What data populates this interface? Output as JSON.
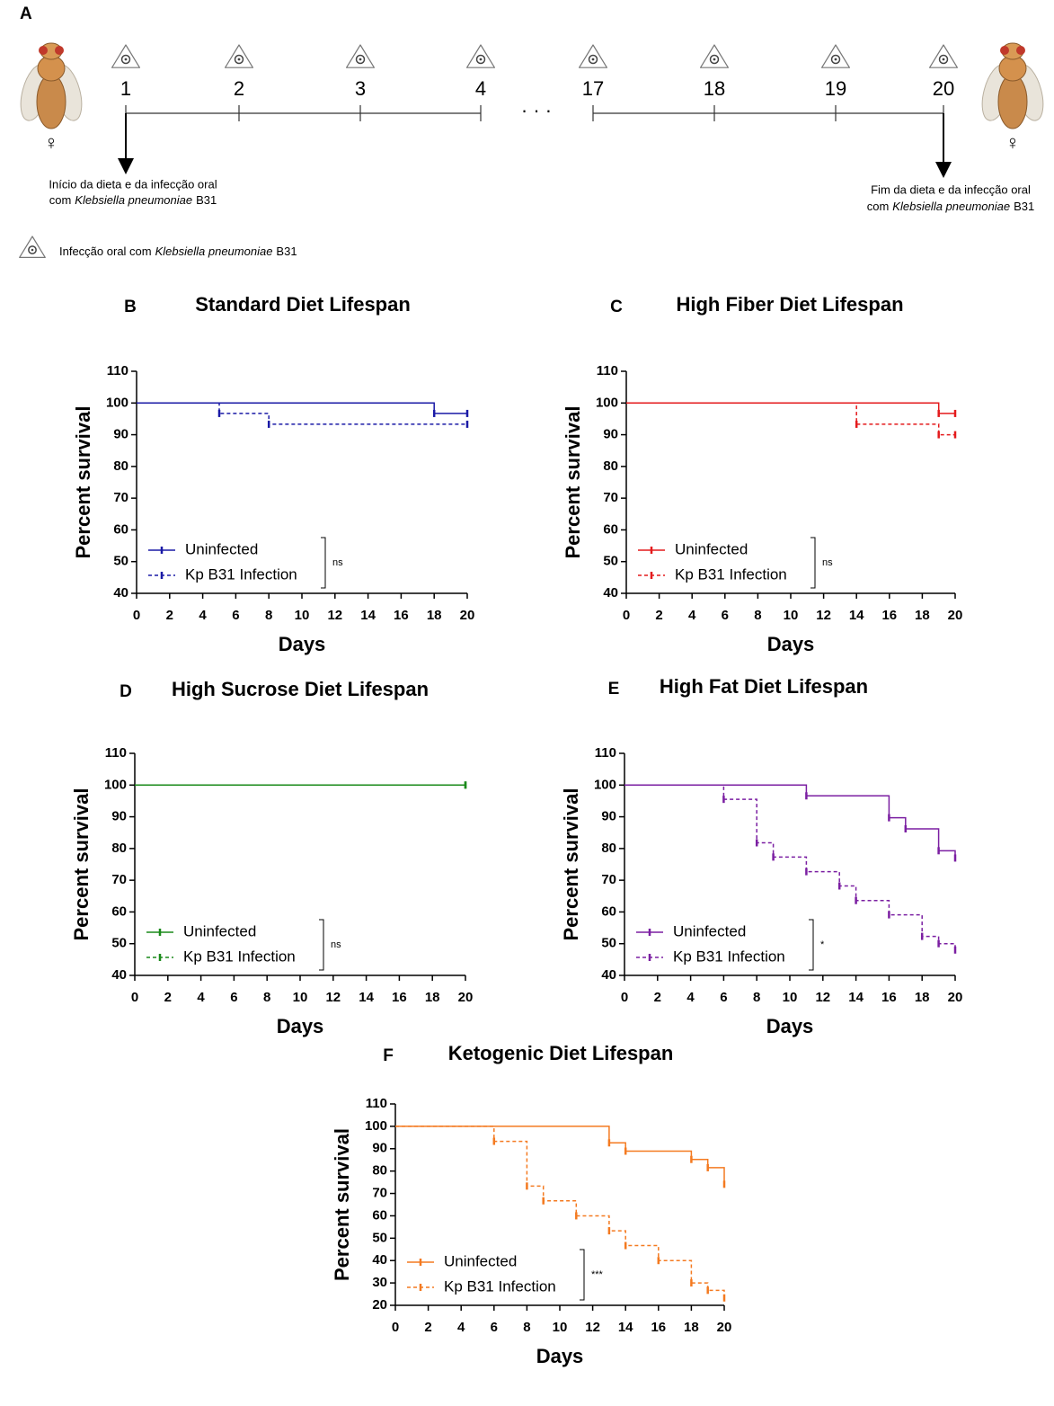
{
  "diagram": {
    "label": "A",
    "days": [
      1,
      2,
      3,
      4,
      17,
      18,
      19,
      20
    ],
    "ellipsis": "· · ·",
    "female_symbol": "♀",
    "start_note": {
      "line1": "Início da dieta e da infecção oral",
      "line2": [
        "com",
        "Klebsiella pneumoniae",
        "B31"
      ]
    },
    "end_note": {
      "line1": "Fim da dieta e da infecção oral",
      "line2": [
        "com",
        "Klebsiella pneumoniae",
        "B31"
      ]
    },
    "legend": [
      "Infecção oral com",
      "Klebsiella pneumoniae",
      "B31"
    ]
  },
  "chart_data": [
    {
      "type": "survival",
      "label": "B",
      "title": "Standard Diet Lifespan",
      "title_color": "#1a1aa6",
      "xlabel": "Days",
      "ylabel": "Percent survival",
      "xlim": [
        0,
        20
      ],
      "xticks": [
        0,
        2,
        4,
        6,
        8,
        10,
        12,
        14,
        16,
        18,
        20
      ],
      "ylim": [
        40,
        110
      ],
      "yticks": [
        40,
        50,
        60,
        70,
        80,
        90,
        100,
        110
      ],
      "annotation": "ns",
      "series": [
        {
          "name": "Uninfected",
          "color": "#1a1aa6",
          "linestyle": "solid",
          "x": [
            0,
            18,
            20
          ],
          "values": [
            100,
            96.7,
            96.7
          ]
        },
        {
          "name": "Kp B31 Infection",
          "color": "#1a1aa6",
          "linestyle": "dashed",
          "x": [
            0,
            5,
            8,
            20
          ],
          "values": [
            100,
            96.7,
            93.3,
            93.3
          ]
        }
      ]
    },
    {
      "type": "survival",
      "label": "C",
      "title": "High Fiber Diet Lifespan",
      "title_color": "#e41a1c",
      "xlabel": "Days",
      "ylabel": "Percent survival",
      "xlim": [
        0,
        20
      ],
      "xticks": [
        0,
        2,
        4,
        6,
        8,
        10,
        12,
        14,
        16,
        18,
        20
      ],
      "ylim": [
        40,
        110
      ],
      "yticks": [
        40,
        50,
        60,
        70,
        80,
        90,
        100,
        110
      ],
      "annotation": "ns",
      "series": [
        {
          "name": "Uninfected",
          "color": "#e41a1c",
          "linestyle": "solid",
          "x": [
            0,
            19,
            20
          ],
          "values": [
            100,
            96.7,
            96.7
          ]
        },
        {
          "name": "Kp B31 Infection",
          "color": "#e41a1c",
          "linestyle": "dashed",
          "x": [
            0,
            14,
            19,
            20
          ],
          "values": [
            100,
            93.3,
            90,
            90
          ]
        }
      ]
    },
    {
      "type": "survival",
      "label": "D",
      "title": "High Sucrose Diet Lifespan",
      "title_color": "#1aa31a",
      "xlabel": "Days",
      "ylabel": "Percent survival",
      "xlim": [
        0,
        20
      ],
      "xticks": [
        0,
        2,
        4,
        6,
        8,
        10,
        12,
        14,
        16,
        18,
        20
      ],
      "ylim": [
        40,
        110
      ],
      "yticks": [
        40,
        50,
        60,
        70,
        80,
        90,
        100,
        110
      ],
      "annotation": "ns",
      "series": [
        {
          "name": "Uninfected",
          "color": "#1a8a1a",
          "linestyle": "solid",
          "x": [
            0,
            20
          ],
          "values": [
            100,
            100
          ]
        },
        {
          "name": "Kp B31 Infection",
          "color": "#1a8a1a",
          "linestyle": "dashed",
          "x": [
            0,
            20
          ],
          "values": [
            100,
            100
          ]
        }
      ]
    },
    {
      "type": "survival",
      "label": "E",
      "title": "High Fat Diet Lifespan",
      "title_color": "#7b1fa2",
      "xlabel": "Days",
      "ylabel": "Percent survival",
      "xlim": [
        0,
        20
      ],
      "xticks": [
        0,
        2,
        4,
        6,
        8,
        10,
        12,
        14,
        16,
        18,
        20
      ],
      "ylim": [
        40,
        110
      ],
      "yticks": [
        40,
        50,
        60,
        70,
        80,
        90,
        100,
        110
      ],
      "annotation": "*",
      "series": [
        {
          "name": "Uninfected",
          "color": "#7b1fa2",
          "linestyle": "solid",
          "x": [
            0,
            11,
            16,
            17,
            19,
            20
          ],
          "values": [
            100,
            96.6,
            89.7,
            86.2,
            79.3,
            77
          ]
        },
        {
          "name": "Kp B31 Infection",
          "color": "#7b1fa2",
          "linestyle": "dashed",
          "x": [
            0,
            6,
            8,
            9,
            11,
            13,
            14,
            16,
            18,
            19,
            20
          ],
          "values": [
            100,
            95.5,
            81.8,
            77.3,
            72.7,
            68.2,
            63.6,
            59.1,
            52.3,
            50,
            48
          ]
        }
      ]
    },
    {
      "type": "survival",
      "label": "F",
      "title": "Ketogenic Diet Lifespan",
      "title_color": "#f47a20",
      "xlabel": "Days",
      "ylabel": "Percent survival",
      "xlim": [
        0,
        20
      ],
      "xticks": [
        0,
        2,
        4,
        6,
        8,
        10,
        12,
        14,
        16,
        18,
        20
      ],
      "ylim": [
        20,
        110
      ],
      "yticks": [
        20,
        30,
        40,
        50,
        60,
        70,
        80,
        90,
        100,
        110
      ],
      "annotation": "***",
      "series": [
        {
          "name": "Uninfected",
          "color": "#f47a20",
          "linestyle": "solid",
          "x": [
            0,
            13,
            14,
            18,
            19,
            20
          ],
          "values": [
            100,
            92.6,
            88.9,
            85.2,
            81.5,
            74.1
          ]
        },
        {
          "name": "Kp B31 Infection",
          "color": "#f47a20",
          "linestyle": "dashed",
          "x": [
            0,
            6,
            8,
            9,
            11,
            13,
            14,
            16,
            18,
            19,
            20
          ],
          "values": [
            100,
            93.3,
            73.3,
            66.7,
            60,
            53.3,
            46.7,
            40,
            30,
            26.7,
            23.3
          ]
        }
      ]
    }
  ]
}
